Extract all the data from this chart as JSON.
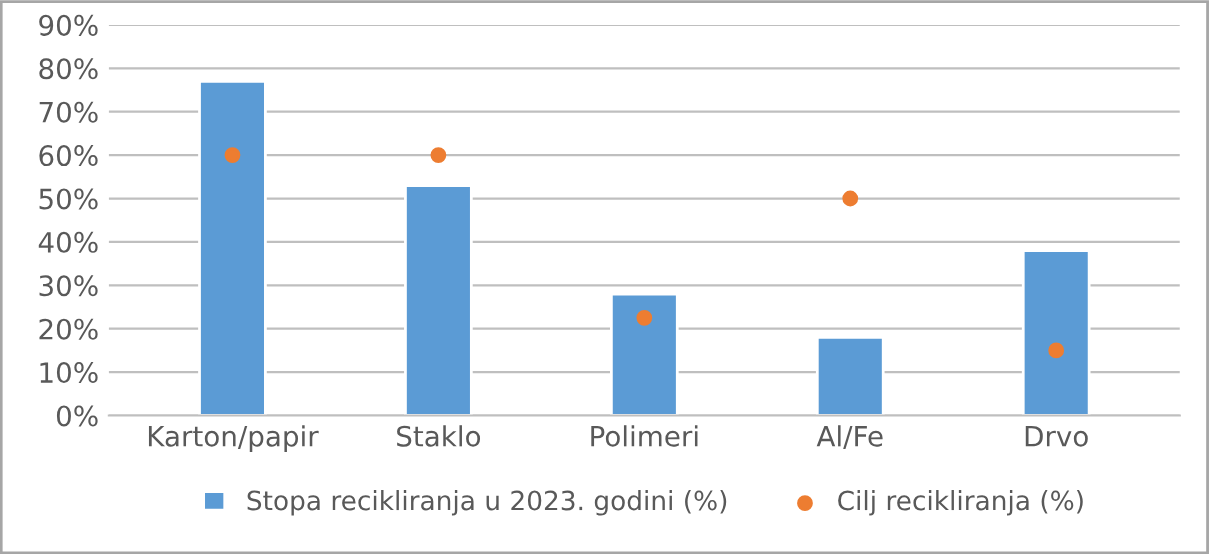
{
  "chart_data": {
    "type": "bar",
    "categories": [
      "Karton/papir",
      "Staklo",
      "Polimeri",
      "Al/Fe",
      "Drvo"
    ],
    "series": [
      {
        "name": "Stopa recikliranja u 2023. godini (%)",
        "color": "#5b9bd5",
        "values": [
          77,
          53,
          28,
          18,
          38
        ]
      },
      {
        "name": "Cilj recikliranja (%)",
        "type": "scatter",
        "color": "#ed7d31",
        "marker": "circle",
        "values": [
          60,
          60,
          22.5,
          50,
          15
        ]
      }
    ],
    "ylim": [
      0,
      90
    ],
    "yticks": [
      {
        "value": 0,
        "label": "0%"
      },
      {
        "value": 10,
        "label": "10%"
      },
      {
        "value": 20,
        "label": "20%"
      },
      {
        "value": 30,
        "label": "30%"
      },
      {
        "value": 40,
        "label": "40%"
      },
      {
        "value": 50,
        "label": "50%"
      },
      {
        "value": 60,
        "label": "60%"
      },
      {
        "value": 70,
        "label": "70%"
      },
      {
        "value": 80,
        "label": "80%"
      },
      {
        "value": 90,
        "label": "90%"
      }
    ],
    "grid": "y",
    "legend": "bottom"
  }
}
